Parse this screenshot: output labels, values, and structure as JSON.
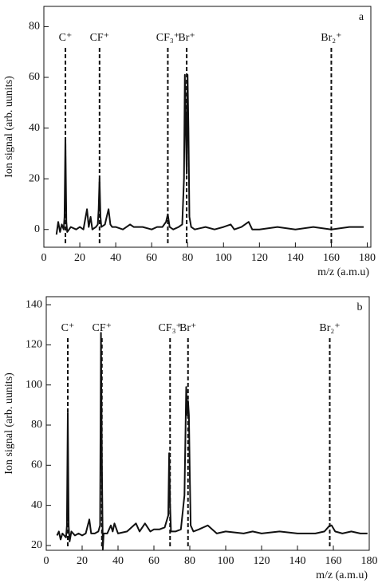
{
  "chart_data": [
    {
      "type": "line",
      "panel": "a",
      "y_label": "Ion signal (arb. uunits)",
      "x_label": "m/z (a.m.u)",
      "xlim": [
        0,
        182
      ],
      "ylim": [
        -7,
        88
      ],
      "xticks": [
        0,
        20,
        40,
        60,
        80,
        100,
        120,
        140,
        160,
        180
      ],
      "yticks": [
        0,
        20,
        40,
        60,
        80
      ],
      "annotations": [
        {
          "text": "C⁺",
          "x": 12
        },
        {
          "text": "CF⁺",
          "x": 31
        },
        {
          "text": "CF₃⁺",
          "x": 69
        },
        {
          "text": "Br⁺",
          "x": 79.5
        },
        {
          "text": "Br₂⁺",
          "x": 160
        }
      ],
      "series": [
        {
          "color": "#111111",
          "x": [
            7,
            8,
            9,
            10,
            11,
            11.5,
            12,
            12.5,
            13,
            15,
            18,
            20,
            22,
            24,
            25,
            26,
            27,
            29,
            30,
            30.5,
            31,
            31.5,
            32,
            34,
            35,
            36,
            37,
            38,
            40,
            44,
            48,
            50,
            55,
            60,
            63,
            66,
            68,
            69,
            70,
            72,
            75,
            77,
            78,
            78.5,
            79,
            79.5,
            80,
            80.5,
            81,
            82,
            84,
            90,
            95,
            100,
            104,
            106,
            110,
            114,
            116,
            120,
            130,
            140,
            150,
            160,
            170,
            178
          ],
          "values": [
            -2,
            3,
            -1,
            2,
            0,
            5,
            36,
            3,
            -1,
            1,
            0,
            1,
            0,
            8,
            1,
            5,
            0,
            1,
            2,
            8,
            20,
            5,
            1,
            2,
            5,
            8,
            2,
            1,
            1,
            0,
            2,
            1,
            1,
            0,
            1,
            1,
            3,
            6,
            1,
            0,
            1,
            2,
            20,
            61,
            40,
            22,
            61,
            40,
            5,
            1,
            0,
            1,
            0,
            1,
            2,
            0,
            1,
            3,
            0,
            0,
            1,
            0,
            1,
            0,
            1,
            1
          ]
        }
      ]
    },
    {
      "type": "line",
      "panel": "b",
      "y_label": "Ion signal (arb. uunits)",
      "x_label": "m/z (a.m.u)",
      "xlim": [
        0,
        180
      ],
      "ylim": [
        17.6,
        144
      ],
      "xticks": [
        0,
        20,
        40,
        60,
        80,
        100,
        120,
        140,
        160,
        180
      ],
      "yticks": [
        20,
        40,
        60,
        80,
        100,
        120,
        140
      ],
      "annotations": [
        {
          "text": "C⁺",
          "x": 12
        },
        {
          "text": "CF⁺",
          "x": 31
        },
        {
          "text": "CF₃⁺",
          "x": 69
        },
        {
          "text": "Br⁺",
          "x": 79
        },
        {
          "text": "Br₂⁺",
          "x": 158
        }
      ],
      "series": [
        {
          "color": "#111111",
          "x": [
            6,
            7,
            8,
            9,
            10,
            11,
            11.5,
            12,
            12.5,
            13,
            14,
            16,
            18,
            20,
            22,
            24,
            25,
            27,
            29,
            30,
            30.5,
            31,
            31.5,
            32,
            34,
            36,
            37,
            38,
            40,
            45,
            50,
            52,
            55,
            58,
            60,
            63,
            66,
            68,
            68.5,
            69,
            69.5,
            72,
            75,
            77,
            78,
            78.5,
            79,
            79.5,
            80,
            80.5,
            82,
            85,
            90,
            95,
            100,
            110,
            115,
            120,
            130,
            140,
            150,
            155,
            157,
            158,
            159,
            161,
            165,
            170,
            175,
            179
          ],
          "values": [
            25,
            27,
            23,
            26,
            25,
            24,
            30,
            86,
            30,
            22,
            27,
            25,
            26,
            25,
            26,
            33,
            26,
            26,
            27,
            30,
            126,
            60,
            18,
            26,
            26,
            30,
            27,
            31,
            26,
            27,
            31,
            27,
            31,
            27,
            28,
            28,
            29,
            35,
            66,
            40,
            27,
            27,
            28,
            45,
            99,
            85,
            92,
            85,
            55,
            30,
            27,
            28,
            30,
            26,
            27,
            26,
            27,
            26,
            27,
            26,
            26,
            27,
            29,
            30,
            30,
            27,
            26,
            27,
            26,
            26
          ]
        }
      ]
    }
  ]
}
